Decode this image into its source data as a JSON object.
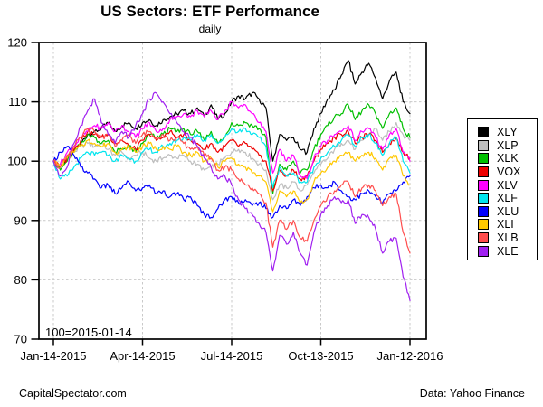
{
  "title": "US Sectors: ETF Performance",
  "subtitle": "daily",
  "footer": {
    "left": "CapitalSpectator.com",
    "right": "Data: Yahoo Finance"
  },
  "colors": {
    "grid": "#c9c9c9",
    "axis": "#000000",
    "background": "#ffffff"
  },
  "chart_data": {
    "type": "line",
    "title": "US Sectors: ETF Performance",
    "subtitle": "daily",
    "baseline_note": "100=2015-01-14",
    "grid": true,
    "legend_position": "right-outside",
    "ylim": [
      70,
      120
    ],
    "y_ticks": [
      70,
      80,
      90,
      100,
      110,
      120
    ],
    "x_tick_labels": [
      "Jan-14-2015",
      "Apr-14-2015",
      "Jul-14-2015",
      "Oct-13-2015",
      "Jan-12-2016"
    ],
    "x_unit": "weekly samples from 2015-01-14 through 2016-01-12 (index, 100 = 2015-01-14)",
    "series": [
      {
        "name": "XLY",
        "color": "#000000",
        "values": [
          100,
          99,
          100.5,
          101.5,
          103,
          104.5,
          105,
          105.5,
          106.5,
          105,
          106,
          106.5,
          105.5,
          106.5,
          107,
          106,
          107,
          107.5,
          108,
          108.5,
          108,
          109,
          107.5,
          109.5,
          107,
          108,
          110,
          111,
          110.5,
          111.5,
          110.5,
          109,
          100,
          104.5,
          103.5,
          104,
          102,
          101.5,
          105.5,
          108,
          110.5,
          112,
          114.5,
          117,
          113,
          115,
          116.5,
          114,
          110.5,
          113.5,
          115,
          110,
          108
        ]
      },
      {
        "name": "XLP",
        "color": "#bebebe",
        "values": [
          100,
          99.5,
          101,
          101.5,
          102.5,
          103,
          102.5,
          103,
          102,
          101,
          101.5,
          100.5,
          101,
          101.5,
          100.5,
          100,
          100.5,
          101,
          100.5,
          101,
          100,
          99.5,
          98.5,
          99,
          99.5,
          100.5,
          101.5,
          102,
          101.5,
          100.5,
          99.5,
          98.5,
          93.5,
          96,
          95.5,
          96.5,
          95,
          96,
          98,
          99.5,
          100.5,
          102,
          103,
          103.5,
          102,
          103.5,
          104.5,
          105.5,
          103.5,
          105,
          106.5,
          104.5,
          103.5
        ]
      },
      {
        "name": "XLK",
        "color": "#00bf00",
        "values": [
          100,
          98.5,
          100,
          101.5,
          103,
          104.5,
          104,
          103,
          103.5,
          101.5,
          102,
          102.5,
          101.5,
          103,
          104.5,
          104,
          104.5,
          105.5,
          105,
          105.5,
          104.5,
          105,
          103.5,
          105,
          103,
          104,
          106.5,
          106,
          106.5,
          106,
          105.5,
          104,
          94.5,
          99.5,
          98.5,
          100,
          98,
          98.5,
          102,
          104.5,
          106,
          107.5,
          108,
          109.5,
          107,
          108.5,
          109.5,
          108,
          105.5,
          108,
          109,
          105.5,
          104
        ]
      },
      {
        "name": "VOX",
        "color": "#ee0000",
        "values": [
          100,
          99,
          100.5,
          102,
          103.5,
          105,
          104.5,
          104,
          104.5,
          103,
          103.5,
          102.5,
          102,
          103.5,
          104.5,
          103.5,
          104,
          105,
          104,
          104.5,
          103.5,
          103,
          102,
          103,
          101.5,
          102.5,
          103.5,
          102.5,
          103,
          102,
          101,
          100,
          95,
          98.5,
          97.5,
          98.5,
          97,
          97.5,
          100,
          102,
          103,
          104,
          104.5,
          105,
          103,
          104,
          104.5,
          103.5,
          101.5,
          103,
          104,
          101.5,
          100.5
        ]
      },
      {
        "name": "XLV",
        "color": "#ff00ff",
        "values": [
          100,
          99.5,
          101.5,
          102.5,
          104,
          105,
          106,
          105.5,
          106.5,
          105,
          106,
          105,
          104,
          105.5,
          106.5,
          105,
          105.5,
          107,
          107.5,
          108,
          107.5,
          108.5,
          107.5,
          108.5,
          107,
          108.5,
          110,
          109,
          109.5,
          108,
          106.5,
          105,
          98,
          102,
          100,
          101,
          97.5,
          97,
          100.5,
          102.5,
          103.5,
          104.5,
          105,
          106,
          103.5,
          105,
          105.5,
          104,
          102,
          104.5,
          105.5,
          101.5,
          100
        ]
      },
      {
        "name": "XLF",
        "color": "#00e5ee",
        "values": [
          100,
          97,
          97.5,
          99,
          100.5,
          101.5,
          101,
          101.5,
          101,
          100,
          101,
          100.5,
          100,
          101.5,
          102,
          101.5,
          102.5,
          103,
          103.5,
          104,
          103.5,
          104.5,
          103.5,
          104.5,
          103,
          104,
          105.5,
          105,
          105.5,
          104.5,
          104,
          102.5,
          95.5,
          99,
          97.5,
          98,
          96.5,
          96.5,
          99,
          100.5,
          101.5,
          102.5,
          103.5,
          104.5,
          102.5,
          104,
          104.5,
          103,
          101,
          103,
          104,
          100,
          98
        ]
      },
      {
        "name": "XLU",
        "color": "#0000ff",
        "values": [
          100,
          101.5,
          102.5,
          101,
          99,
          98,
          97,
          95.5,
          96,
          94.5,
          95.5,
          96.5,
          95,
          95.5,
          96,
          94.5,
          95,
          94,
          94.5,
          93.5,
          94,
          92.5,
          91,
          90.5,
          92,
          93.5,
          94,
          93,
          93.5,
          92.5,
          93,
          92,
          90.5,
          92.5,
          92,
          93.5,
          92.5,
          94,
          95.5,
          96,
          95.5,
          96.5,
          95,
          94,
          93.5,
          94.5,
          95,
          94,
          93,
          94.5,
          95,
          96.5,
          97.5
        ]
      },
      {
        "name": "XLI",
        "color": "#ffc800",
        "values": [
          100,
          99,
          100.5,
          101.5,
          102.5,
          103.5,
          103,
          102.5,
          103,
          101.5,
          102,
          102.5,
          101.5,
          102.5,
          103,
          102,
          102.5,
          102,
          102.5,
          101.5,
          101,
          101.5,
          100,
          100.5,
          99,
          100,
          100.5,
          99.5,
          99,
          98,
          97.5,
          96.5,
          91.5,
          95,
          94,
          95,
          93,
          93.5,
          96.5,
          98,
          99,
          100,
          101,
          101.5,
          100,
          101,
          101.5,
          100.5,
          98.5,
          100.5,
          101,
          97.5,
          96
        ]
      },
      {
        "name": "XLB",
        "color": "#ff4d4d",
        "values": [
          100,
          99,
          101,
          102.5,
          104,
          105.5,
          105,
          104,
          104.5,
          102.5,
          103.5,
          104.5,
          103,
          104.5,
          105,
          104,
          104.5,
          103.5,
          104,
          103,
          102,
          102.5,
          101,
          100.5,
          98.5,
          99,
          98.5,
          97,
          96,
          95.5,
          94.5,
          93,
          85.5,
          90,
          88.5,
          90,
          87,
          86.5,
          90,
          92.5,
          94,
          95,
          96,
          96.5,
          94,
          95.5,
          96,
          95,
          92.5,
          94,
          94.5,
          88,
          84.5
        ]
      },
      {
        "name": "XLE",
        "color": "#a020f0",
        "values": [
          100,
          97.5,
          99,
          103,
          106,
          108.5,
          110.5,
          106.5,
          104.5,
          103,
          105,
          104,
          106,
          108,
          110.5,
          111.5,
          110,
          108,
          106.5,
          105,
          104,
          102.5,
          100.5,
          99,
          97,
          97.5,
          96,
          93.5,
          92,
          91,
          89.5,
          88,
          81.5,
          87.5,
          86,
          88,
          84.5,
          82.5,
          88,
          91,
          92.5,
          94,
          93,
          93.5,
          89.5,
          91,
          90.5,
          88.5,
          84.5,
          86.5,
          87,
          80.5,
          76.5
        ]
      }
    ]
  }
}
